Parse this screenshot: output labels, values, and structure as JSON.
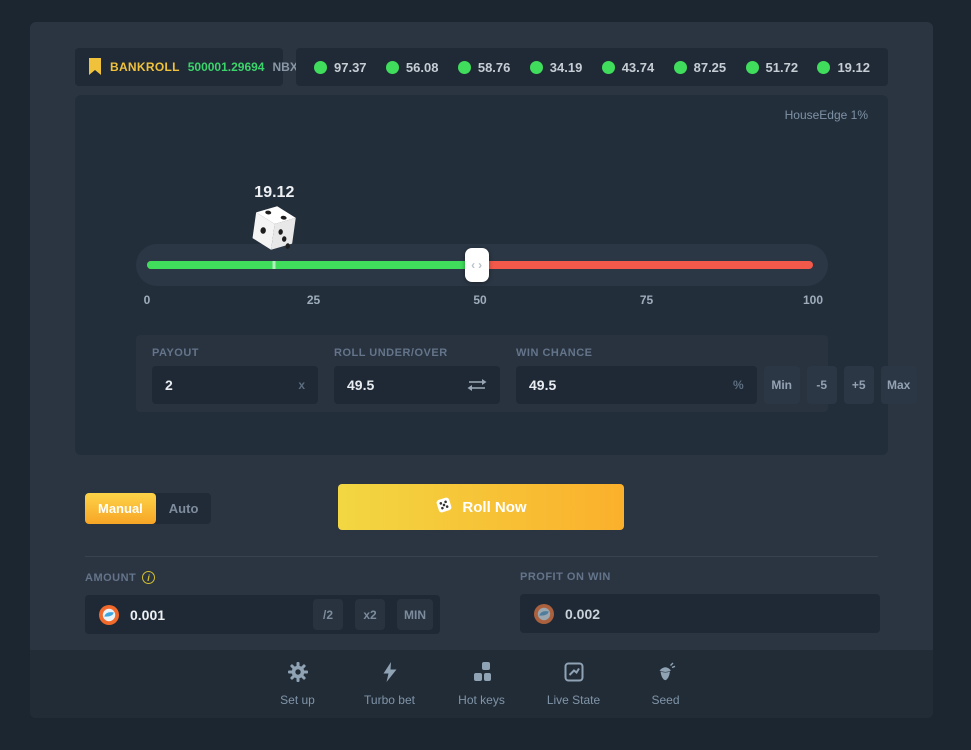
{
  "bankroll": {
    "label": "BANKROLL",
    "value": "500001.29694",
    "currency": "NBX"
  },
  "recent_results": [
    "97.37",
    "56.08",
    "58.76",
    "34.19",
    "43.74",
    "87.25",
    "51.72",
    "19.12"
  ],
  "game": {
    "house_edge": "HouseEdge 1%",
    "roll_result": "19.12",
    "roll_result_pct": 19.12,
    "handle_pct": 49.5,
    "handle": {
      "left_glyph": "‹",
      "right_glyph": "›"
    },
    "scale_ticks": [
      "0",
      "25",
      "50",
      "75",
      "100"
    ],
    "payout": {
      "label": "PAYOUT",
      "value": "2",
      "suffix": "x"
    },
    "roll_under_over": {
      "label": "ROLL UNDER/OVER",
      "value": "49.5"
    },
    "win_chance": {
      "label": "WIN CHANCE",
      "value": "49.5",
      "suffix": "%",
      "buttons": [
        "Min",
        "-5",
        "+5",
        "Max"
      ]
    }
  },
  "bet": {
    "modes": [
      {
        "label": "Manual",
        "active": true
      },
      {
        "label": "Auto",
        "active": false
      }
    ],
    "roll_button": "Roll Now",
    "amount": {
      "label": "AMOUNT",
      "value": "0.001",
      "buttons": [
        "/2",
        "x2",
        "MIN"
      ]
    },
    "profit": {
      "label": "PROFIT ON WIN",
      "value": "0.002"
    }
  },
  "footer": {
    "items": [
      {
        "label": "Set up"
      },
      {
        "label": "Turbo bet"
      },
      {
        "label": "Hot keys"
      },
      {
        "label": "Live State"
      },
      {
        "label": "Seed"
      }
    ]
  },
  "colors": {
    "accent_green": "#40dc5c",
    "accent_red": "#f3594a",
    "accent_yellow": "#f7b62a",
    "bankroll_green": "#3bd46a"
  }
}
